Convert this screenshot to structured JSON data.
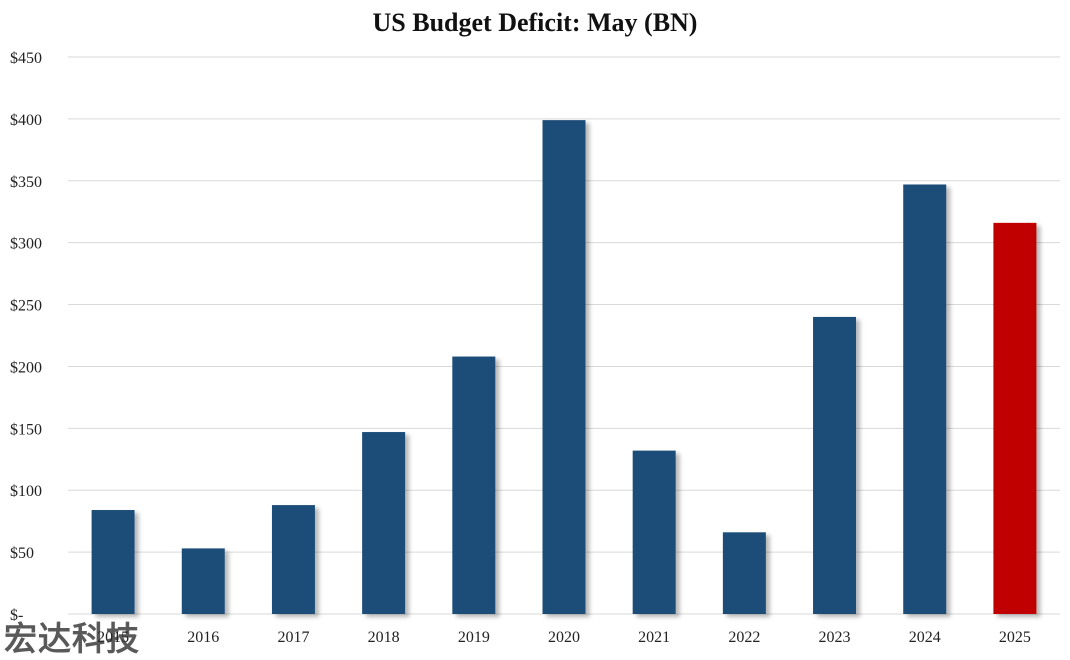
{
  "chart_data": {
    "type": "bar",
    "title": "US Budget Deficit: May (BN)",
    "xlabel": "",
    "ylabel": "",
    "categories": [
      "2015",
      "2016",
      "2017",
      "2018",
      "2019",
      "2020",
      "2021",
      "2022",
      "2023",
      "2024",
      "2025"
    ],
    "values": [
      84,
      53,
      88,
      147,
      208,
      399,
      132,
      66,
      240,
      347,
      316
    ],
    "ylim": [
      0,
      450
    ],
    "y_ticks": [
      0,
      50,
      100,
      150,
      200,
      250,
      300,
      350,
      400,
      450
    ],
    "y_tick_labels": [
      "$-",
      "$50",
      "$100",
      "$150",
      "$200",
      "$250",
      "$300",
      "$350",
      "$400",
      "$450"
    ],
    "grid": "horizontal",
    "legend": "none",
    "colors": {
      "default_bar": "#1f4e79",
      "highlight_bar": "#c00000",
      "highlight_category": "2025",
      "gridline": "#d9d9d9"
    }
  },
  "watermark": "宏达科技"
}
